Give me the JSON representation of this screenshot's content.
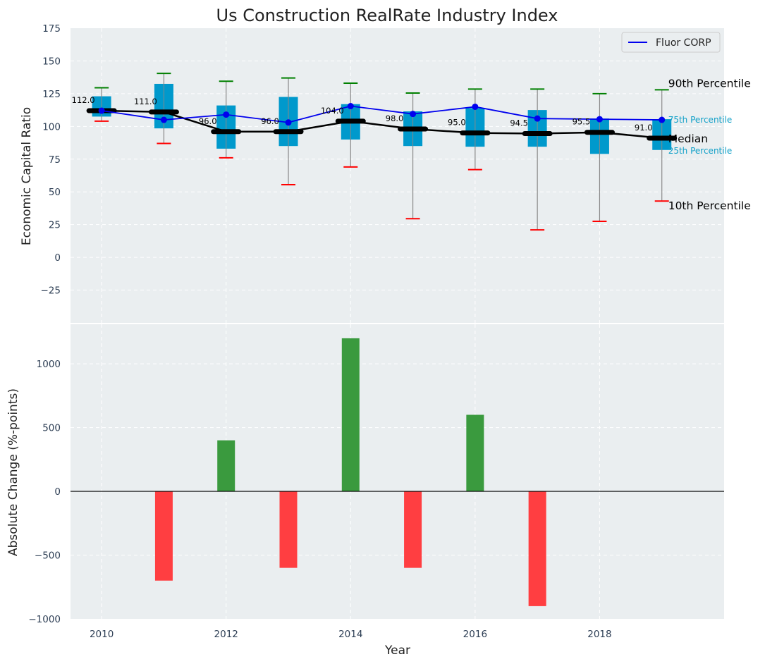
{
  "chart_data": [
    {
      "type": "box",
      "title": "Us Construction RealRate Industry Index",
      "xlabel": "",
      "ylabel": "Economic Capital Ratio",
      "ylim": [
        -50,
        175
      ],
      "xlim": [
        2009.5,
        2020
      ],
      "yticks": [
        -25,
        0,
        25,
        50,
        75,
        100,
        125,
        150,
        175
      ],
      "ytick_labels": [
        "−25",
        "0",
        "25",
        "50",
        "75",
        "100",
        "125",
        "150",
        "175"
      ],
      "grid": true,
      "x": [
        2010,
        2011,
        2012,
        2013,
        2014,
        2015,
        2016,
        2017,
        2018,
        2019
      ],
      "p90": [
        129.5,
        140.5,
        134.5,
        137,
        133,
        125.5,
        128.5,
        128.5,
        125,
        128
      ],
      "p75": [
        123,
        132.5,
        116,
        122.5,
        117,
        111.5,
        114,
        112.5,
        106,
        105.5
      ],
      "median": [
        112,
        111,
        96,
        96,
        104,
        98,
        95,
        94.5,
        95.5,
        91
      ],
      "median_labels": [
        "112.0",
        "111.0",
        "96.0",
        "96.0",
        "104.0",
        "98.0",
        "95.0",
        "94.5",
        "95.5",
        "91.0"
      ],
      "p25": [
        107.5,
        98.5,
        83,
        85,
        90,
        85,
        84.5,
        84.5,
        79,
        82
      ],
      "p10": [
        104,
        87,
        76,
        55.5,
        69,
        29.5,
        67,
        21,
        27.5,
        43
      ],
      "series": [
        {
          "name": "Fluor CORP",
          "values": [
            112,
            105,
            109,
            103,
            115.5,
            109.5,
            115,
            106,
            105.5,
            105
          ],
          "color": "#0000ee"
        }
      ],
      "legend": {
        "position": "top-right",
        "entries": [
          "Fluor CORP"
        ]
      },
      "annotations": [
        "90th Percentile",
        "75th Percentile",
        "Median",
        "25th Percentile",
        "10th Percentile"
      ],
      "colors": {
        "box": "#0099cc",
        "median": "#000000",
        "p90_cap": "#008000",
        "p10_cap": "#ff0000",
        "whisker": "#888888"
      }
    },
    {
      "type": "bar",
      "title": "",
      "xlabel": "Year",
      "ylabel": "Absolute Change (%-points)",
      "ylim": [
        -1000,
        1310
      ],
      "xlim": [
        2009.5,
        2020
      ],
      "yticks": [
        -1000,
        -500,
        0,
        500,
        1000
      ],
      "ytick_labels": [
        "−1000",
        "−500",
        "0",
        "500",
        "1000"
      ],
      "xticks": [
        2010,
        2012,
        2014,
        2016,
        2018
      ],
      "xtick_labels": [
        "2010",
        "2012",
        "2014",
        "2016",
        "2018"
      ],
      "grid": true,
      "categories": [
        2011,
        2012,
        2013,
        2014,
        2015,
        2016,
        2017
      ],
      "values": [
        -700,
        400,
        -600,
        1200,
        -600,
        600,
        -900
      ],
      "colors": {
        "positive": "#3a9a3e",
        "negative": "#ff3e41"
      }
    }
  ]
}
